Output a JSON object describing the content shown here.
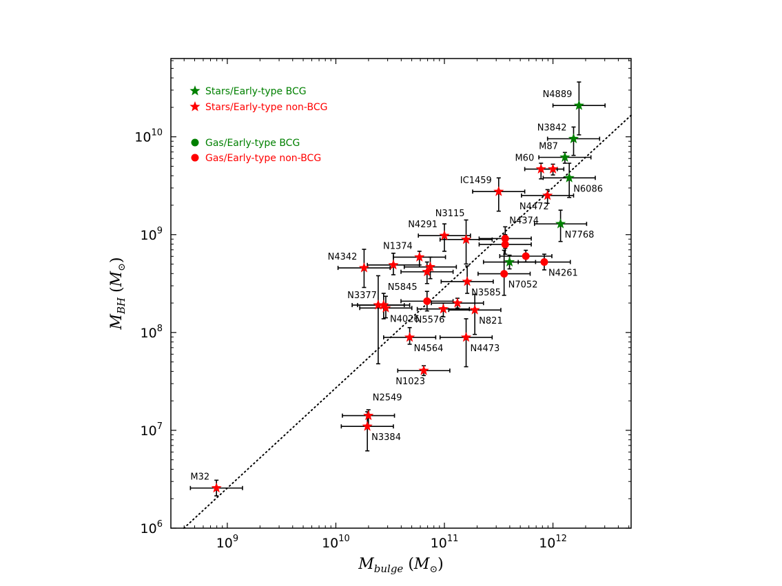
{
  "chart_data": {
    "type": "scatter",
    "title": "",
    "xlabel": "M_bulge (M_⊙)",
    "ylabel": "M_BH (M_⊙)",
    "xlabel_parts": {
      "main": "M",
      "sub": "bulge",
      "paren_open": "(",
      "sym": "M",
      "sym_sub": "⊙",
      "paren_close": ")"
    },
    "ylabel_parts": {
      "main": "M",
      "sub": "BH",
      "paren_open": "(",
      "sym": "M",
      "sym_sub": "⊙",
      "paren_close": ")"
    },
    "x_scale": "log",
    "y_scale": "log",
    "xlim_log10": [
      8.48,
      12.72
    ],
    "ylim_log10": [
      6.0,
      10.8
    ],
    "x_ticks": [
      {
        "base": "10",
        "exp": "9",
        "log": 9
      },
      {
        "base": "10",
        "exp": "10",
        "log": 10
      },
      {
        "base": "10",
        "exp": "11",
        "log": 11
      },
      {
        "base": "10",
        "exp": "12",
        "log": 12
      }
    ],
    "y_ticks": [
      {
        "base": "10",
        "exp": "6",
        "log": 6
      },
      {
        "base": "10",
        "exp": "7",
        "log": 7
      },
      {
        "base": "10",
        "exp": "8",
        "log": 8
      },
      {
        "base": "10",
        "exp": "9",
        "log": 9
      },
      {
        "base": "10",
        "exp": "10",
        "log": 10
      }
    ],
    "colors": {
      "bcg": "#008000",
      "nonbcg": "#ff0000",
      "axes": "#000000",
      "errorbar": "#000000"
    },
    "fit_line": {
      "style": "dotted",
      "points_log10": [
        [
          8.6,
          6.0
        ],
        [
          12.72,
          10.22
        ]
      ]
    },
    "legend": [
      {
        "label": "Stars/Early-type BCG",
        "marker": "star",
        "color": "#008000"
      },
      {
        "label": "Stars/Early-type non-BCG",
        "marker": "star",
        "color": "#ff0000"
      },
      {
        "label": "Gas/Early-type BCG",
        "marker": "circle",
        "color": "#008000"
      },
      {
        "label": "Gas/Early-type non-BCG",
        "marker": "circle",
        "color": "#ff0000"
      }
    ],
    "points": [
      {
        "name": "N4889",
        "x": 12.24,
        "y": 10.32,
        "xerr": 0.24,
        "yerr_lo": 0.3,
        "yerr_hi": 0.24,
        "marker": "star",
        "color": "#008000",
        "label": "N4889",
        "label_pos": "above-left"
      },
      {
        "name": "N3842",
        "x": 12.19,
        "y": 9.98,
        "xerr": 0.24,
        "yerr_lo": 0.17,
        "yerr_hi": 0.12,
        "marker": "star",
        "color": "#008000",
        "label": "N3842",
        "label_pos": "above-left"
      },
      {
        "name": "M87",
        "x": 12.11,
        "y": 9.79,
        "xerr": 0.24,
        "yerr_lo": 0.06,
        "yerr_hi": 0.05,
        "marker": "star",
        "color": "#008000",
        "label": "M87",
        "label_pos": "above-left"
      },
      {
        "name": "N6086",
        "x": 12.15,
        "y": 9.58,
        "xerr": 0.24,
        "yerr_lo": 0.2,
        "yerr_hi": 0.15,
        "marker": "star",
        "color": "#008000",
        "label": "N6086",
        "label_pos": "right-below"
      },
      {
        "name": "N7768",
        "x": 12.07,
        "y": 9.11,
        "xerr": 0.24,
        "yerr_lo": 0.18,
        "yerr_hi": 0.14,
        "marker": "star",
        "color": "#008000",
        "label": "N7768",
        "label_pos": "right-below"
      },
      {
        "name": "BCG-star-mid",
        "x": 11.6,
        "y": 8.72,
        "xerr": 0.24,
        "yerr_lo": 0.07,
        "yerr_hi": 0.07,
        "marker": "star",
        "color": "#008000",
        "label": "",
        "label_pos": ""
      },
      {
        "name": "M60a",
        "x": 11.89,
        "y": 9.67,
        "xerr": 0.15,
        "yerr_lo": 0.1,
        "yerr_hi": 0.06,
        "marker": "star",
        "color": "#ff0000",
        "label": "M60",
        "label_pos": "above-left"
      },
      {
        "name": "M60b",
        "x": 12.0,
        "y": 9.67,
        "xerr": 0.1,
        "yerr_lo": 0.06,
        "yerr_hi": 0.05,
        "marker": "star",
        "color": "#ff0000",
        "label": "",
        "label_pos": ""
      },
      {
        "name": "IC1459",
        "x": 11.5,
        "y": 9.44,
        "xerr": 0.24,
        "yerr_lo": 0.2,
        "yerr_hi": 0.14,
        "marker": "star",
        "color": "#ff0000",
        "label": "IC1459",
        "label_pos": "above-left"
      },
      {
        "name": "N4472",
        "x": 11.95,
        "y": 9.4,
        "xerr": 0.24,
        "yerr_lo": 0.08,
        "yerr_hi": 0.06,
        "marker": "star",
        "color": "#ff0000",
        "label": "N4472",
        "label_pos": "below-left"
      },
      {
        "name": "N4291",
        "x": 11.0,
        "y": 8.99,
        "xerr": 0.24,
        "yerr_lo": 0.16,
        "yerr_hi": 0.12,
        "marker": "star",
        "color": "#ff0000",
        "label": "N4291",
        "label_pos": "above-left"
      },
      {
        "name": "N3115",
        "x": 11.2,
        "y": 8.95,
        "xerr": 0.24,
        "yerr_lo": 0.25,
        "yerr_hi": 0.2,
        "marker": "star",
        "color": "#ff0000",
        "label": "N3115",
        "label_pos": "above-left-far"
      },
      {
        "name": "N1374",
        "x": 10.77,
        "y": 8.77,
        "xerr": 0.24,
        "yerr_lo": 0.08,
        "yerr_hi": 0.06,
        "marker": "star",
        "color": "#ff0000",
        "label": "N1374",
        "label_pos": "above-left"
      },
      {
        "name": "N1374b",
        "x": 10.87,
        "y": 8.67,
        "xerr": 0.24,
        "yerr_lo": 0.12,
        "yerr_hi": 0.1,
        "marker": "star",
        "color": "#ff0000",
        "label": "",
        "label_pos": ""
      },
      {
        "name": "N1374c",
        "x": 10.84,
        "y": 8.62,
        "xerr": 0.24,
        "yerr_lo": 0.12,
        "yerr_hi": 0.1,
        "marker": "star",
        "color": "#ff0000",
        "label": "",
        "label_pos": ""
      },
      {
        "name": "N4342",
        "x": 10.26,
        "y": 8.66,
        "xerr": 0.24,
        "yerr_lo": 0.2,
        "yerr_hi": 0.19,
        "marker": "star",
        "color": "#ff0000",
        "label": "N4342",
        "label_pos": "above-left"
      },
      {
        "name": "N4342b",
        "x": 10.53,
        "y": 8.69,
        "xerr": 0.24,
        "yerr_lo": 0.1,
        "yerr_hi": 0.12,
        "marker": "star",
        "color": "#ff0000",
        "label": "",
        "label_pos": ""
      },
      {
        "name": "N5845",
        "x": 10.44,
        "y": 8.28,
        "xerr": 0.24,
        "yerr_lo": 0.14,
        "yerr_hi": 0.12,
        "marker": "star",
        "color": "#ff0000",
        "label": "N5845",
        "label_pos": "above-right"
      },
      {
        "name": "N3377",
        "x": 10.39,
        "y": 8.28,
        "xerr": 0.24,
        "yerr_lo": 0.6,
        "yerr_hi": 0.3,
        "marker": "star",
        "color": "#ff0000",
        "label": "N3377",
        "label_pos": "left"
      },
      {
        "name": "N4026",
        "x": 10.46,
        "y": 8.25,
        "xerr": 0.24,
        "yerr_lo": 0.1,
        "yerr_hi": 0.12,
        "marker": "star",
        "color": "#ff0000",
        "label": "N4026",
        "label_pos": "below-right"
      },
      {
        "name": "N3585",
        "x": 11.21,
        "y": 8.52,
        "xerr": 0.24,
        "yerr_lo": 0.12,
        "yerr_hi": 0.16,
        "marker": "star",
        "color": "#ff0000",
        "label": "N3585",
        "label_pos": "below-right"
      },
      {
        "name": "N5576",
        "x": 10.99,
        "y": 8.24,
        "xerr": 0.24,
        "yerr_lo": 0.08,
        "yerr_hi": 0.06,
        "marker": "star",
        "color": "#ff0000",
        "label": "N5576",
        "label_pos": "below-left"
      },
      {
        "name": "N5576b",
        "x": 11.12,
        "y": 8.3,
        "xerr": 0.24,
        "yerr_lo": 0.05,
        "yerr_hi": 0.05,
        "marker": "star",
        "color": "#ff0000",
        "label": "",
        "label_pos": ""
      },
      {
        "name": "N821",
        "x": 11.28,
        "y": 8.23,
        "xerr": 0.24,
        "yerr_lo": 0.25,
        "yerr_hi": 0.16,
        "marker": "star",
        "color": "#ff0000",
        "label": "N821",
        "label_pos": "below-right"
      },
      {
        "name": "N4564",
        "x": 10.68,
        "y": 7.95,
        "xerr": 0.24,
        "yerr_lo": 0.07,
        "yerr_hi": 0.1,
        "marker": "star",
        "color": "#ff0000",
        "label": "N4564",
        "label_pos": "below-right"
      },
      {
        "name": "N4473",
        "x": 11.2,
        "y": 7.95,
        "xerr": 0.24,
        "yerr_lo": 0.3,
        "yerr_hi": 0.19,
        "marker": "star",
        "color": "#ff0000",
        "label": "N4473",
        "label_pos": "below-right"
      },
      {
        "name": "N1023",
        "x": 10.81,
        "y": 7.61,
        "xerr": 0.24,
        "yerr_lo": 0.05,
        "yerr_hi": 0.05,
        "marker": "star",
        "color": "#ff0000",
        "label": "N1023",
        "label_pos": "below-left"
      },
      {
        "name": "N2549",
        "x": 10.3,
        "y": 7.15,
        "xerr": 0.24,
        "yerr_lo": 0.1,
        "yerr_hi": 0.06,
        "marker": "star",
        "color": "#ff0000",
        "label": "N2549",
        "label_pos": "above-right"
      },
      {
        "name": "N3384",
        "x": 10.29,
        "y": 7.04,
        "xerr": 0.24,
        "yerr_lo": 0.25,
        "yerr_hi": 0.15,
        "marker": "star",
        "color": "#ff0000",
        "label": "N3384",
        "label_pos": "below-right"
      },
      {
        "name": "M32",
        "x": 8.9,
        "y": 6.41,
        "xerr": 0.24,
        "yerr_lo": 0.08,
        "yerr_hi": 0.08,
        "marker": "star",
        "color": "#ff0000",
        "label": "M32",
        "label_pos": "above-left"
      },
      {
        "name": "N4374",
        "x": 11.56,
        "y": 8.96,
        "xerr": 0.24,
        "yerr_lo": 0.1,
        "yerr_hi": 0.12,
        "marker": "circle",
        "color": "#ff0000",
        "label": "N4374",
        "label_pos": "above-right"
      },
      {
        "name": "N4374b",
        "x": 11.56,
        "y": 8.9,
        "xerr": 0.24,
        "yerr_lo": 0.1,
        "yerr_hi": 0.1,
        "marker": "circle",
        "color": "#ff0000",
        "label": "",
        "label_pos": ""
      },
      {
        "name": "N4261",
        "x": 11.92,
        "y": 8.72,
        "xerr": 0.24,
        "yerr_lo": 0.08,
        "yerr_hi": 0.08,
        "marker": "circle",
        "color": "#ff0000",
        "label": "N4261",
        "label_pos": "right-below"
      },
      {
        "name": "N4261b",
        "x": 11.75,
        "y": 8.78,
        "xerr": 0.24,
        "yerr_lo": 0.06,
        "yerr_hi": 0.06,
        "marker": "circle",
        "color": "#ff0000",
        "label": "",
        "label_pos": ""
      },
      {
        "name": "N7052",
        "x": 11.55,
        "y": 8.6,
        "xerr": 0.24,
        "yerr_lo": 0.22,
        "yerr_hi": 0.24,
        "marker": "circle",
        "color": "#ff0000",
        "label": "N7052",
        "label_pos": "below-right"
      },
      {
        "name": "gas-mid",
        "x": 10.84,
        "y": 8.32,
        "xerr": 0.24,
        "yerr_lo": 0.1,
        "yerr_hi": 0.1,
        "marker": "circle",
        "color": "#ff0000",
        "label": "",
        "label_pos": ""
      }
    ]
  }
}
